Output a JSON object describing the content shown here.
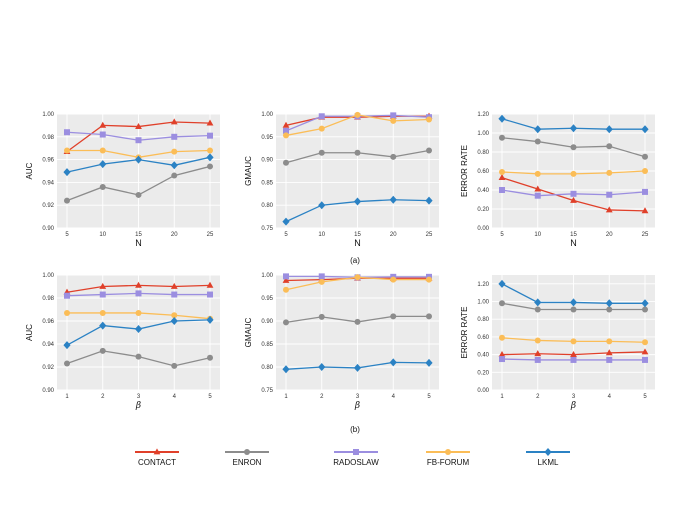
{
  "captions": [
    "(a)",
    "(b)"
  ],
  "colors": {
    "CONTACT": "#e0402a",
    "ENRON": "#8c8c8c",
    "RADOSLAW": "#9b8ee0",
    "FB-FORUM": "#fbbd57",
    "LKML": "#2b82c4",
    "panel_bg": "#ebebeb",
    "grid": "#ffffff"
  },
  "markers": {
    "CONTACT": "triangle",
    "ENRON": "circle",
    "RADOSLAW": "square",
    "FB-FORUM": "circle",
    "LKML": "diamond"
  },
  "legend": [
    "CONTACT",
    "ENRON",
    "RADOSLAW",
    "FB-FORUM",
    "LKML"
  ],
  "chart_data": [
    {
      "type": "line",
      "ylabel": "AUC",
      "xlabel": "N",
      "x": [
        5,
        10,
        15,
        20,
        25
      ],
      "x_ticks": [
        "5",
        "10",
        "15",
        "20",
        "25"
      ],
      "ylim": [
        0.9,
        1.0
      ],
      "y_ticks": [
        "0.90",
        "0.92",
        "0.94",
        "0.96",
        "0.98",
        "1.00"
      ],
      "series": [
        {
          "name": "CONTACT",
          "values": [
            0.967,
            0.99,
            0.989,
            0.993,
            0.992
          ]
        },
        {
          "name": "ENRON",
          "values": [
            0.924,
            0.936,
            0.929,
            0.946,
            0.954
          ]
        },
        {
          "name": "RADOSLAW",
          "values": [
            0.984,
            0.982,
            0.977,
            0.98,
            0.981
          ]
        },
        {
          "name": "FB-FORUM",
          "values": [
            0.968,
            0.968,
            0.962,
            0.967,
            0.968
          ]
        },
        {
          "name": "LKML",
          "values": [
            0.949,
            0.956,
            0.96,
            0.955,
            0.962
          ]
        }
      ]
    },
    {
      "type": "line",
      "ylabel": "GMAUC",
      "xlabel": "N",
      "x": [
        5,
        10,
        15,
        20,
        25
      ],
      "x_ticks": [
        "5",
        "10",
        "15",
        "20",
        "25"
      ],
      "ylim": [
        0.75,
        1.0
      ],
      "y_ticks": [
        "0.75",
        "0.80",
        "0.85",
        "0.90",
        "0.95",
        "1.00"
      ],
      "series": [
        {
          "name": "CONTACT",
          "values": [
            0.975,
            0.993,
            0.993,
            0.995,
            0.995
          ]
        },
        {
          "name": "ENRON",
          "values": [
            0.893,
            0.915,
            0.915,
            0.906,
            0.92
          ]
        },
        {
          "name": "RADOSLAW",
          "values": [
            0.963,
            0.995,
            0.995,
            0.997,
            0.993
          ]
        },
        {
          "name": "FB-FORUM",
          "values": [
            0.953,
            0.968,
            0.998,
            0.985,
            0.988
          ]
        },
        {
          "name": "LKML",
          "values": [
            0.764,
            0.8,
            0.808,
            0.812,
            0.81
          ]
        }
      ]
    },
    {
      "type": "line",
      "ylabel": "ERROR RATE",
      "xlabel": "N",
      "x": [
        5,
        10,
        15,
        20,
        25
      ],
      "x_ticks": [
        "5",
        "10",
        "15",
        "20",
        "25"
      ],
      "ylim": [
        0.0,
        1.2
      ],
      "y_ticks": [
        "0.00",
        "0.20",
        "0.40",
        "0.60",
        "0.80",
        "1.00",
        "1.20"
      ],
      "series": [
        {
          "name": "CONTACT",
          "values": [
            0.53,
            0.41,
            0.29,
            0.19,
            0.18
          ]
        },
        {
          "name": "ENRON",
          "values": [
            0.95,
            0.91,
            0.85,
            0.86,
            0.75
          ]
        },
        {
          "name": "RADOSLAW",
          "values": [
            0.4,
            0.34,
            0.36,
            0.35,
            0.38
          ]
        },
        {
          "name": "FB-FORUM",
          "values": [
            0.59,
            0.57,
            0.57,
            0.58,
            0.6
          ]
        },
        {
          "name": "LKML",
          "values": [
            1.15,
            1.04,
            1.05,
            1.04,
            1.04
          ]
        }
      ]
    },
    {
      "type": "line",
      "ylabel": "AUC",
      "xlabel": "β",
      "x": [
        1,
        2,
        3,
        4,
        5
      ],
      "x_ticks": [
        "1",
        "2",
        "3",
        "4",
        "5"
      ],
      "ylim": [
        0.9,
        1.0
      ],
      "y_ticks": [
        "0.90",
        "0.92",
        "0.94",
        "0.96",
        "0.98",
        "1.00"
      ],
      "series": [
        {
          "name": "CONTACT",
          "values": [
            0.985,
            0.99,
            0.991,
            0.99,
            0.991
          ]
        },
        {
          "name": "ENRON",
          "values": [
            0.923,
            0.934,
            0.929,
            0.921,
            0.928
          ]
        },
        {
          "name": "RADOSLAW",
          "values": [
            0.982,
            0.983,
            0.984,
            0.983,
            0.983
          ]
        },
        {
          "name": "FB-FORUM",
          "values": [
            0.967,
            0.967,
            0.967,
            0.965,
            0.962
          ]
        },
        {
          "name": "LKML",
          "values": [
            0.939,
            0.956,
            0.953,
            0.96,
            0.961
          ]
        }
      ]
    },
    {
      "type": "line",
      "ylabel": "GMAUC",
      "xlabel": "β",
      "x": [
        1,
        2,
        3,
        4,
        5
      ],
      "x_ticks": [
        "1",
        "2",
        "3",
        "4",
        "5"
      ],
      "ylim": [
        0.75,
        1.0
      ],
      "y_ticks": [
        "0.75",
        "0.80",
        "0.85",
        "0.90",
        "0.95",
        "1.00"
      ],
      "series": [
        {
          "name": "CONTACT",
          "values": [
            0.988,
            0.99,
            0.993,
            0.993,
            0.993
          ]
        },
        {
          "name": "ENRON",
          "values": [
            0.897,
            0.909,
            0.898,
            0.91,
            0.91
          ]
        },
        {
          "name": "RADOSLAW",
          "values": [
            0.997,
            0.997,
            0.995,
            0.996,
            0.996
          ]
        },
        {
          "name": "FB-FORUM",
          "values": [
            0.968,
            0.985,
            0.995,
            0.99,
            0.99
          ]
        },
        {
          "name": "LKML",
          "values": [
            0.795,
            0.8,
            0.798,
            0.81,
            0.809
          ]
        }
      ]
    },
    {
      "type": "line",
      "ylabel": "ERROR RATE",
      "xlabel": "β",
      "x": [
        1,
        2,
        3,
        4,
        5
      ],
      "x_ticks": [
        "1",
        "2",
        "3",
        "4",
        "5"
      ],
      "ylim": [
        0.0,
        1.3
      ],
      "y_ticks": [
        "0.00",
        "0.20",
        "0.40",
        "0.60",
        "0.80",
        "1.00",
        "1.20"
      ],
      "series": [
        {
          "name": "CONTACT",
          "values": [
            0.4,
            0.41,
            0.4,
            0.42,
            0.43
          ]
        },
        {
          "name": "ENRON",
          "values": [
            0.98,
            0.91,
            0.91,
            0.91,
            0.91
          ]
        },
        {
          "name": "RADOSLAW",
          "values": [
            0.35,
            0.34,
            0.34,
            0.34,
            0.34
          ]
        },
        {
          "name": "FB-FORUM",
          "values": [
            0.59,
            0.56,
            0.55,
            0.55,
            0.54
          ]
        },
        {
          "name": "LKML",
          "values": [
            1.2,
            0.99,
            0.99,
            0.98,
            0.98
          ]
        }
      ]
    }
  ]
}
